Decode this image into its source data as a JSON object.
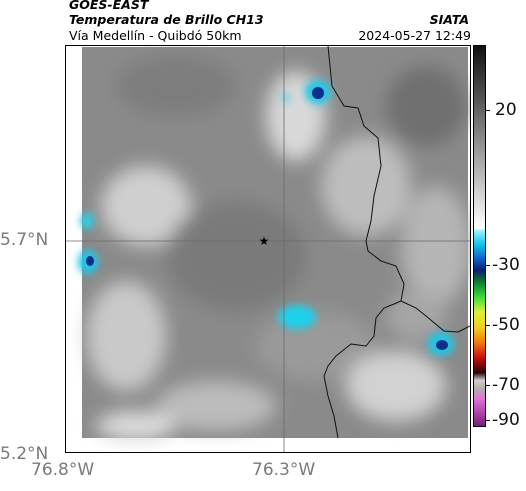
{
  "header": {
    "satellite": "GOES-EAST",
    "product": "Temperatura de Brillo CH13",
    "region": "Vía Medellín - Quibdó 50km",
    "source": "SIATA",
    "datetime": "2024-05-27 12:49"
  },
  "map": {
    "x_ticks": [
      "76.8°W",
      "76.3°W"
    ],
    "y_ticks": [
      "5.7°N",
      "5.2°N"
    ],
    "marker_icon": "star-icon"
  },
  "colorbar": {
    "labels": [
      "20",
      "-30",
      "-50",
      "-70",
      "-90"
    ],
    "unit": ""
  },
  "colors": {
    "cloud_gray": "#8a8a8a",
    "cold_cyan": "#1ec8e8",
    "cold_blue": "#0b2f8a"
  }
}
